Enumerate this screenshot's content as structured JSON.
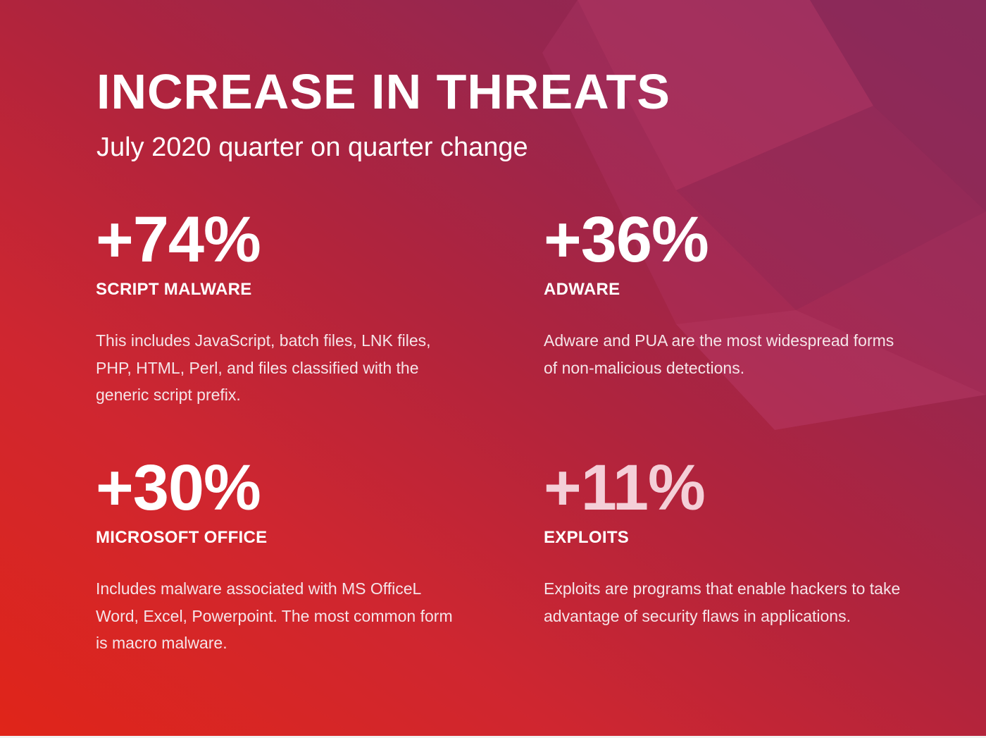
{
  "header": {
    "title": "INCREASE IN THREATS",
    "subtitle": "July 2020 quarter on quarter change"
  },
  "stats": [
    {
      "value": "+74%",
      "label": "SCRIPT MALWARE",
      "description": "This includes JavaScript, batch files, LNK files, PHP, HTML, Perl, and files classified with the generic script prefix."
    },
    {
      "value": "+36%",
      "label": "ADWARE",
      "description": "Adware and PUA are the most widespread forms of non-malicious detections."
    },
    {
      "value": "+30%",
      "label": "MICROSOFT OFFICE",
      "description": "Includes malware associated with MS OfficeL Word, Excel, Powerpoint. The most common form is macro malware."
    },
    {
      "value": "+11%",
      "label": "EXPLOITS",
      "description": "Exploits are programs that enable hackers to take advantage of security flaws in applications."
    }
  ],
  "colors": {
    "background_start": "#e02519",
    "background_end": "#842a59",
    "text": "#ffffff",
    "accent_value": "#f4cfd8"
  }
}
